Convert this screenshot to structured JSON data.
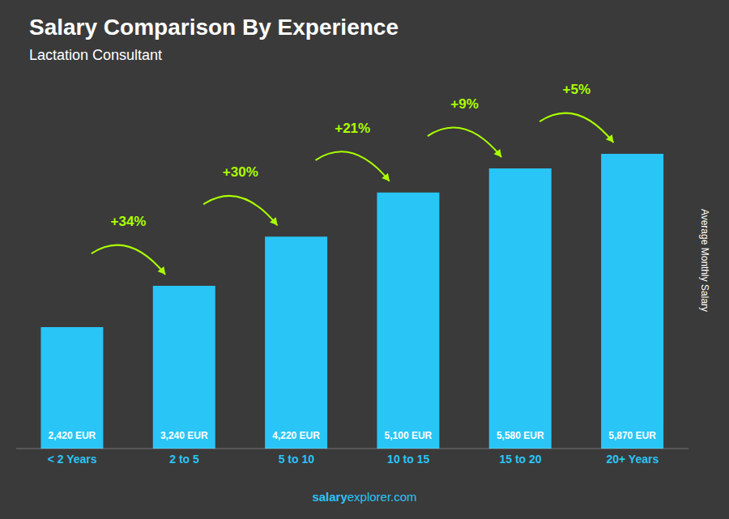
{
  "chart_data": {
    "type": "bar",
    "title": "Salary Comparison By Experience",
    "subtitle": "Lactation Consultant",
    "ylabel": "Average Monthly Salary",
    "categories": [
      "< 2 Years",
      "2 to 5",
      "5 to 10",
      "10 to 15",
      "15 to 20",
      "20+ Years"
    ],
    "values": [
      2420,
      3240,
      4220,
      5100,
      5580,
      5870
    ],
    "value_labels": [
      "2,420 EUR",
      "3,240 EUR",
      "4,220 EUR",
      "5,100 EUR",
      "5,580 EUR",
      "5,870 EUR"
    ],
    "data_labels": true,
    "color": "#29c5f6",
    "ylim": [
      0,
      7500
    ],
    "tick_labels": "x",
    "grid": false,
    "annotations": [
      {
        "text": "+34%",
        "from": "< 2 Years",
        "to": "2 to 5",
        "color": "#aaff00"
      },
      {
        "text": "+30%",
        "from": "2 to 5",
        "to": "5 to 10",
        "color": "#aaff00"
      },
      {
        "text": "+21%",
        "from": "5 to 10",
        "to": "10 to 15",
        "color": "#aaff00"
      },
      {
        "text": "+9%",
        "from": "10 to 15",
        "to": "15 to 20",
        "color": "#aaff00"
      },
      {
        "text": "+5%",
        "from": "15 to 20",
        "to": "20+ Years",
        "color": "#aaff00"
      },
      {
        "text": "salary"
      },
      {
        "text": "explorer.com"
      }
    ]
  }
}
